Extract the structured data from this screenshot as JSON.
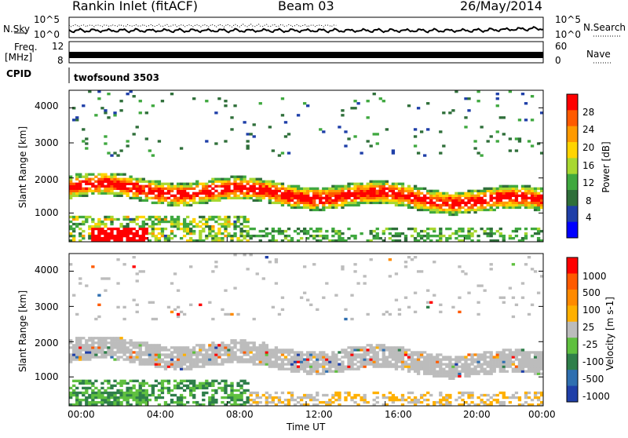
{
  "header": {
    "station": "Rankin Inlet (fitACF)",
    "beam": "Beam 03",
    "date": "26/May/2014"
  },
  "noise_panel": {
    "left_label": "N.Sky",
    "right_label": "N.Search",
    "left_ticks": [
      "10^5",
      "10^0"
    ],
    "right_ticks": [
      "10^5",
      "10^0"
    ]
  },
  "freq_panel": {
    "left_label_1": "Freq.",
    "left_label_2": "[MHz]",
    "right_label": "Nave",
    "left_ticks": [
      "12",
      "8"
    ],
    "right_ticks": [
      "60",
      "0"
    ]
  },
  "cpid_panel": {
    "label": "CPID",
    "value": "twofsound 3503"
  },
  "x_axis": {
    "label": "Time UT",
    "ticks": [
      "00:00",
      "04:00",
      "08:00",
      "12:00",
      "16:00",
      "20:00",
      "00:00"
    ]
  },
  "power_panel": {
    "ylabel": "Slant Range [km]",
    "yticks": [
      "4000",
      "3000",
      "2000",
      "1000"
    ],
    "colorbar_label": "Power [dB]",
    "colorbar_ticks": [
      "28",
      "24",
      "20",
      "16",
      "12",
      "8",
      "4"
    ],
    "colors": [
      "#0000ff",
      "#1f3fa8",
      "#2f6f3a",
      "#3fa83f",
      "#a8d830",
      "#ffd400",
      "#ff9a00",
      "#ff5a00",
      "#ff0000"
    ]
  },
  "velocity_panel": {
    "ylabel": "Slant Range [km]",
    "yticks": [
      "4000",
      "3000",
      "2000",
      "1000"
    ],
    "colorbar_label": "Velocity [m s-1]",
    "colorbar_ticks": [
      "1000",
      "500",
      "100",
      "25",
      "-25",
      "-100",
      "-500",
      "-1000"
    ],
    "colors": [
      "#1f3fa8",
      "#2f6fb0",
      "#2f7f4a",
      "#5fc03f",
      "#bcbcbc",
      "#ffb000",
      "#ff8a00",
      "#ff5a00",
      "#ff0000"
    ]
  },
  "chart_data": {
    "type": "heatmap",
    "title": "Rankin Inlet (fitACF)",
    "xlabel": "Time UT",
    "ylabel": "Slant Range [km]",
    "x_range_hours": [
      0,
      24
    ],
    "y_range_km": [
      180,
      4500
    ],
    "power_scale_db": [
      0,
      32
    ],
    "velocity_scale_ms": [
      -1000,
      1000
    ],
    "grid": false
  }
}
